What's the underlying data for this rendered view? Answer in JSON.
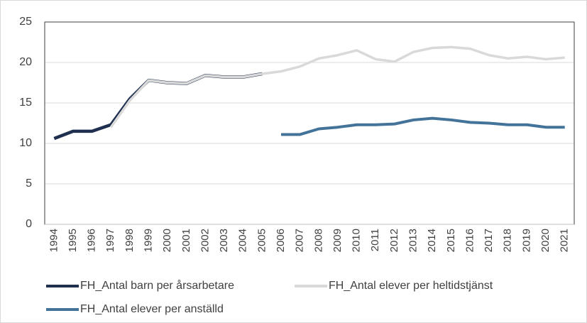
{
  "chart_data": {
    "type": "line",
    "categories": [
      "1994",
      "1995",
      "1996",
      "1997",
      "1998",
      "1999",
      "2000",
      "2001",
      "2002",
      "2003",
      "2004",
      "2005",
      "2006",
      "2007",
      "2008",
      "2009",
      "2010",
      "2011",
      "2012",
      "2013",
      "2014",
      "2015",
      "2016",
      "2017",
      "2018",
      "2019",
      "2020",
      "2021"
    ],
    "series": [
      {
        "name": "FH_Antal barn per årsarbetare",
        "color": "#1f2f4f",
        "values": [
          10.6,
          11.5,
          11.5,
          12.3,
          15.5,
          17.8,
          17.5,
          17.4,
          18.4,
          18.2,
          18.2,
          18.6,
          null,
          null,
          null,
          null,
          null,
          null,
          null,
          null,
          null,
          null,
          null,
          null,
          null,
          null,
          null,
          null
        ]
      },
      {
        "name": "FH_Antal elever per heltidstjänst",
        "color": "#d9d9d9",
        "values": [
          null,
          null,
          null,
          12.0,
          15.3,
          17.8,
          17.5,
          17.4,
          18.4,
          18.2,
          18.2,
          18.6,
          18.9,
          19.5,
          20.5,
          20.9,
          21.5,
          20.4,
          20.1,
          21.3,
          21.8,
          21.9,
          21.7,
          20.9,
          20.5,
          20.7,
          20.4,
          20.6
        ]
      },
      {
        "name": "FH_Antal elever per anställd",
        "color": "#44739a",
        "values": [
          null,
          null,
          null,
          null,
          null,
          null,
          null,
          null,
          null,
          null,
          null,
          null,
          11.1,
          11.1,
          11.8,
          12.0,
          12.3,
          12.3,
          12.4,
          12.9,
          13.1,
          12.9,
          12.6,
          12.5,
          12.3,
          12.3,
          12.0,
          12.0
        ]
      }
    ],
    "ylim": [
      0,
      25
    ],
    "yticks": [
      0,
      5,
      10,
      15,
      20,
      25
    ],
    "grid": true
  }
}
